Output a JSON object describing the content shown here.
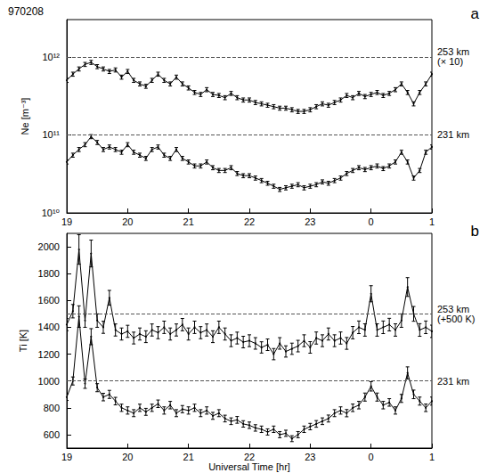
{
  "chart_data": [
    {
      "type": "line",
      "title": "970208",
      "panel": "a",
      "y_label": "Ne [m⁻³]",
      "log": "y",
      "grid": false,
      "x": [
        19.0,
        19.1,
        19.2,
        19.3,
        19.4,
        19.5,
        19.6,
        19.7,
        19.8,
        19.9,
        20.0,
        20.1,
        20.2,
        20.3,
        20.4,
        20.5,
        20.6,
        20.7,
        20.8,
        20.9,
        21.0,
        21.1,
        21.2,
        21.3,
        21.4,
        21.5,
        21.6,
        21.7,
        21.8,
        21.9,
        22.0,
        22.1,
        22.2,
        22.3,
        22.4,
        22.5,
        22.6,
        22.7,
        22.8,
        22.9,
        23.0,
        23.1,
        23.2,
        23.3,
        23.4,
        23.5,
        23.6,
        23.7,
        23.8,
        23.9,
        24.0,
        24.1,
        24.2,
        24.3,
        24.4,
        24.5,
        24.6,
        24.7,
        24.8,
        24.9,
        25.0
      ],
      "xlim": [
        19,
        25
      ],
      "xticks": [
        19,
        20,
        21,
        22,
        23,
        {
          "value": 24,
          "label": "0"
        },
        {
          "value": 25,
          "label": "1"
        }
      ],
      "ylim": [
        10000000000.0,
        3000000000000.0
      ],
      "yticks": [
        {
          "value": 10000000000.0,
          "label": "10¹⁰"
        },
        {
          "value": 100000000000.0,
          "label": "10¹¹"
        },
        {
          "value": 1000000000000.0,
          "label": "10¹²"
        }
      ],
      "series": [
        {
          "name": "253 km",
          "note": "(× 10)",
          "color": "#000000",
          "marker": "circle",
          "line_style": "solid",
          "reference": 1000000000000.0,
          "values": [
            500000000000.0,
            600000000000.0,
            700000000000.0,
            800000000000.0,
            850000000000.0,
            750000000000.0,
            700000000000.0,
            650000000000.0,
            680000000000.0,
            550000000000.0,
            650000000000.0,
            500000000000.0,
            450000000000.0,
            420000000000.0,
            500000000000.0,
            600000000000.0,
            500000000000.0,
            450000000000.0,
            550000000000.0,
            450000000000.0,
            400000000000.0,
            350000000000.0,
            330000000000.0,
            380000000000.0,
            330000000000.0,
            320000000000.0,
            300000000000.0,
            340000000000.0,
            300000000000.0,
            280000000000.0,
            280000000000.0,
            260000000000.0,
            250000000000.0,
            240000000000.0,
            230000000000.0,
            220000000000.0,
            220000000000.0,
            210000000000.0,
            200000000000.0,
            200000000000.0,
            210000000000.0,
            230000000000.0,
            250000000000.0,
            240000000000.0,
            260000000000.0,
            280000000000.0,
            320000000000.0,
            300000000000.0,
            340000000000.0,
            310000000000.0,
            330000000000.0,
            350000000000.0,
            320000000000.0,
            340000000000.0,
            380000000000.0,
            450000000000.0,
            350000000000.0,
            250000000000.0,
            350000000000.0,
            450000000000.0,
            600000000000.0
          ],
          "errors": [
            30000000000.0,
            36000000000.0,
            42000000000.0,
            48000000000.0,
            51000000000.0,
            45000000000.0,
            42000000000.0,
            39000000000.0,
            41000000000.0,
            33000000000.0,
            39000000000.0,
            30000000000.0,
            27000000000.0,
            25000000000.0,
            30000000000.0,
            36000000000.0,
            30000000000.0,
            27000000000.0,
            33000000000.0,
            27000000000.0,
            24000000000.0,
            21000000000.0,
            20000000000.0,
            23000000000.0,
            20000000000.0,
            19000000000.0,
            18000000000.0,
            20000000000.0,
            18000000000.0,
            17000000000.0,
            17000000000.0,
            16000000000.0,
            15000000000.0,
            14000000000.0,
            14000000000.0,
            13000000000.0,
            13000000000.0,
            13000000000.0,
            12000000000.0,
            12000000000.0,
            13000000000.0,
            14000000000.0,
            15000000000.0,
            14000000000.0,
            16000000000.0,
            17000000000.0,
            19000000000.0,
            18000000000.0,
            20000000000.0,
            19000000000.0,
            20000000000.0,
            21000000000.0,
            19000000000.0,
            20000000000.0,
            23000000000.0,
            27000000000.0,
            21000000000.0,
            15000000000.0,
            21000000000.0,
            27000000000.0,
            36000000000.0
          ]
        },
        {
          "name": "231 km",
          "color": "#000000",
          "marker": "circle",
          "line_style": "solid",
          "reference": 100000000000.0,
          "values": [
            45000000000.0,
            55000000000.0,
            65000000000.0,
            75000000000.0,
            95000000000.0,
            80000000000.0,
            65000000000.0,
            70000000000.0,
            65000000000.0,
            60000000000.0,
            75000000000.0,
            60000000000.0,
            55000000000.0,
            50000000000.0,
            65000000000.0,
            70000000000.0,
            55000000000.0,
            50000000000.0,
            65000000000.0,
            50000000000.0,
            45000000000.0,
            40000000000.0,
            40000000000.0,
            45000000000.0,
            38000000000.0,
            35000000000.0,
            35000000000.0,
            38000000000.0,
            32000000000.0,
            30000000000.0,
            30000000000.0,
            28000000000.0,
            26000000000.0,
            24000000000.0,
            22000000000.0,
            20000000000.0,
            21000000000.0,
            22000000000.0,
            23000000000.0,
            21000000000.0,
            22000000000.0,
            23000000000.0,
            25000000000.0,
            24000000000.0,
            26000000000.0,
            28000000000.0,
            32000000000.0,
            35000000000.0,
            38000000000.0,
            36000000000.0,
            38000000000.0,
            40000000000.0,
            37000000000.0,
            40000000000.0,
            45000000000.0,
            60000000000.0,
            45000000000.0,
            28000000000.0,
            35000000000.0,
            60000000000.0,
            70000000000.0
          ],
          "errors": [
            2700000000.0,
            3300000000.0,
            3900000000.0,
            4500000000.0,
            5700000000.0,
            4800000000.0,
            3900000000.0,
            4200000000.0,
            3900000000.0,
            3600000000.0,
            4500000000.0,
            3600000000.0,
            3300000000.0,
            3000000000.0,
            3900000000.0,
            4200000000.0,
            3300000000.0,
            3000000000.0,
            3900000000.0,
            3000000000.0,
            2700000000.0,
            2400000000.0,
            2400000000.0,
            2700000000.0,
            2300000000.0,
            2100000000.0,
            2100000000.0,
            2300000000.0,
            1900000000.0,
            1800000000.0,
            1800000000.0,
            1700000000.0,
            1600000000.0,
            1400000000.0,
            1300000000.0,
            1200000000.0,
            1300000000.0,
            1300000000.0,
            1400000000.0,
            1300000000.0,
            1300000000.0,
            1400000000.0,
            1500000000.0,
            1400000000.0,
            1600000000.0,
            1700000000.0,
            1900000000.0,
            2100000000.0,
            2300000000.0,
            2200000000.0,
            2300000000.0,
            2400000000.0,
            2200000000.0,
            2400000000.0,
            2700000000.0,
            3600000000.0,
            2700000000.0,
            1700000000.0,
            2100000000.0,
            3600000000.0,
            4200000000.0
          ]
        }
      ]
    },
    {
      "type": "line",
      "panel": "b",
      "y_label": "Ti [K]",
      "x_label": "Universal Time [hr]",
      "grid": false,
      "x": [
        19.0,
        19.1,
        19.2,
        19.3,
        19.4,
        19.5,
        19.6,
        19.7,
        19.8,
        19.9,
        20.0,
        20.1,
        20.2,
        20.3,
        20.4,
        20.5,
        20.6,
        20.7,
        20.8,
        20.9,
        21.0,
        21.1,
        21.2,
        21.3,
        21.4,
        21.5,
        21.6,
        21.7,
        21.8,
        21.9,
        22.0,
        22.1,
        22.2,
        22.3,
        22.4,
        22.5,
        22.6,
        22.7,
        22.8,
        22.9,
        23.0,
        23.1,
        23.2,
        23.3,
        23.4,
        23.5,
        23.6,
        23.7,
        23.8,
        23.9,
        24.0,
        24.1,
        24.2,
        24.3,
        24.4,
        24.5,
        24.6,
        24.7,
        24.8,
        24.9,
        25.0
      ],
      "xlim": [
        19,
        25
      ],
      "xticks": [
        19,
        20,
        21,
        22,
        23,
        {
          "value": 24,
          "label": "0"
        },
        {
          "value": 25,
          "label": "1"
        }
      ],
      "ylim": [
        500,
        2100
      ],
      "yticks": [
        600,
        800,
        1000,
        1200,
        1400,
        1600,
        1800,
        2000
      ],
      "series": [
        {
          "name": "253 km",
          "note": "(+500 K)",
          "color": "#000000",
          "marker": "circle",
          "line_style": "solid",
          "reference": 1500,
          "values": [
            1420,
            1520,
            1980,
            1450,
            1950,
            1450,
            1400,
            1620,
            1380,
            1350,
            1370,
            1320,
            1350,
            1330,
            1380,
            1360,
            1400,
            1350,
            1380,
            1420,
            1350,
            1400,
            1360,
            1380,
            1330,
            1400,
            1350,
            1300,
            1320,
            1290,
            1300,
            1280,
            1250,
            1270,
            1200,
            1280,
            1220,
            1240,
            1260,
            1300,
            1250,
            1320,
            1300,
            1350,
            1300,
            1320,
            1280,
            1360,
            1400,
            1380,
            1650,
            1380,
            1400,
            1420,
            1380,
            1450,
            1700,
            1500,
            1380,
            1400,
            1370
          ],
          "errors": [
            45,
            50,
            110,
            50,
            100,
            50,
            45,
            55,
            45,
            45,
            45,
            44,
            45,
            44,
            45,
            45,
            46,
            45,
            45,
            46,
            45,
            46,
            45,
            45,
            44,
            46,
            45,
            44,
            44,
            43,
            44,
            43,
            42,
            43,
            42,
            43,
            42,
            42,
            43,
            44,
            43,
            45,
            44,
            45,
            44,
            45,
            44,
            46,
            47,
            46,
            60,
            46,
            47,
            47,
            46,
            50,
            70,
            55,
            47,
            47,
            46
          ]
        },
        {
          "name": "231 km",
          "color": "#000000",
          "marker": "circle",
          "line_style": "solid",
          "reference": 1000,
          "values": [
            880,
            1000,
            1480,
            980,
            1330,
            950,
            880,
            900,
            850,
            800,
            780,
            760,
            800,
            770,
            800,
            830,
            780,
            820,
            760,
            790,
            780,
            800,
            760,
            780,
            740,
            760,
            720,
            700,
            710,
            680,
            670,
            650,
            640,
            620,
            640,
            600,
            610,
            570,
            600,
            640,
            660,
            680,
            700,
            720,
            760,
            780,
            760,
            800,
            820,
            880,
            960,
            880,
            820,
            840,
            780,
            870,
            1060,
            900,
            850,
            800,
            850
          ],
          "errors": [
            25,
            30,
            80,
            35,
            60,
            30,
            28,
            30,
            28,
            27,
            27,
            26,
            27,
            26,
            27,
            28,
            27,
            28,
            26,
            27,
            27,
            27,
            26,
            27,
            26,
            26,
            25,
            25,
            25,
            24,
            24,
            24,
            24,
            23,
            24,
            23,
            23,
            22,
            23,
            24,
            24,
            25,
            25,
            26,
            26,
            27,
            27,
            28,
            28,
            30,
            35,
            30,
            28,
            28,
            27,
            30,
            45,
            32,
            30,
            28,
            30
          ]
        }
      ]
    }
  ]
}
